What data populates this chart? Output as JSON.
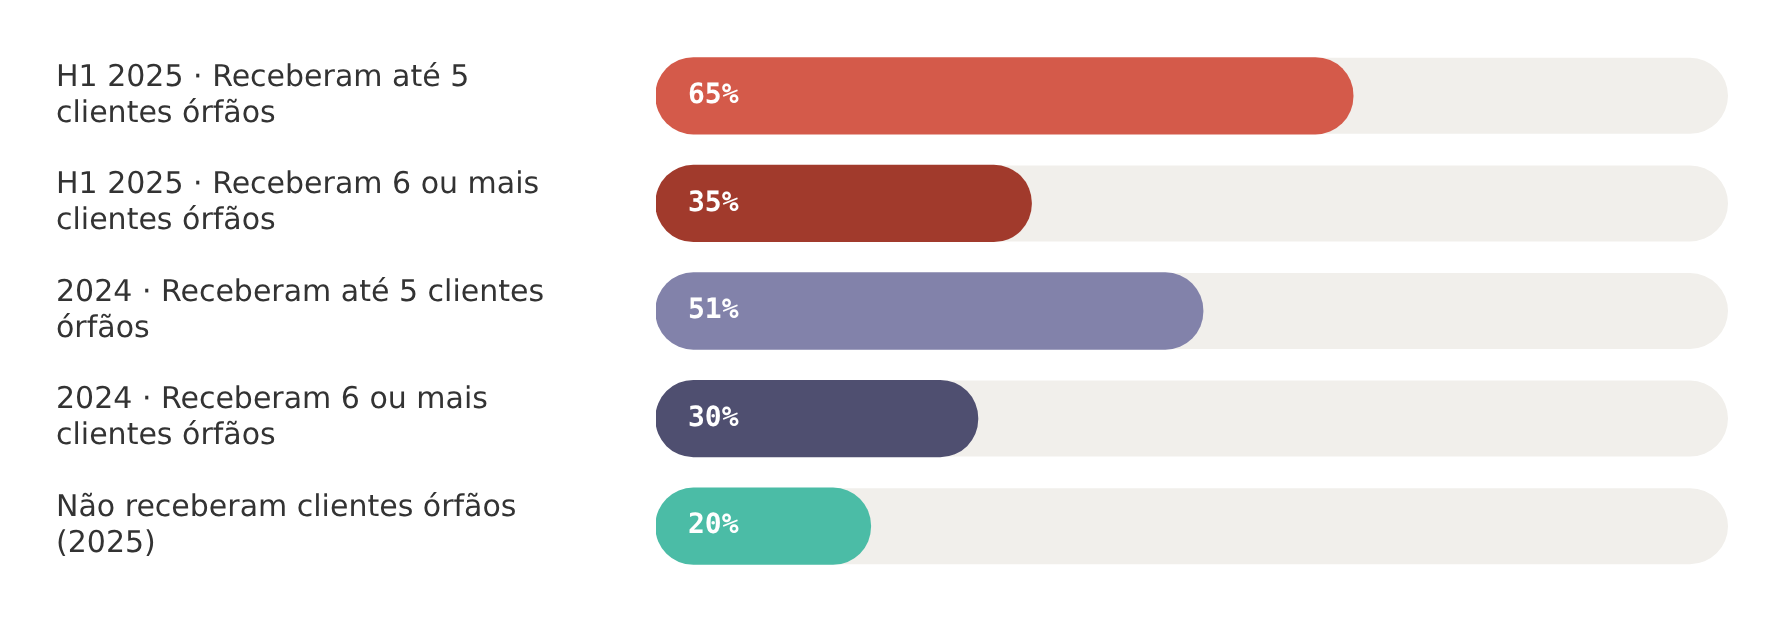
{
  "chart_data": {
    "type": "bar",
    "orientation": "horizontal",
    "categories": [
      "H1 2025 · Receberam até 5 clientes órfãos",
      "H1 2025 · Receberam 6 ou mais clientes órfãos",
      "2024 · Receberam até 5 clientes órfãos",
      "2024 · Receberam 6 ou mais clientes órfãos",
      "Não receberam clientes órfãos (2025)"
    ],
    "values": [
      65,
      35,
      51,
      30,
      20
    ],
    "colors": [
      "#d45a4a",
      "#a13a2c",
      "#8282aa",
      "#4f4f70",
      "#4bbca6"
    ],
    "value_labels": [
      "65%",
      "35%",
      "51%",
      "30%",
      "20%"
    ],
    "xlim": [
      0,
      100
    ],
    "tick_labels": "y",
    "legend": false
  }
}
